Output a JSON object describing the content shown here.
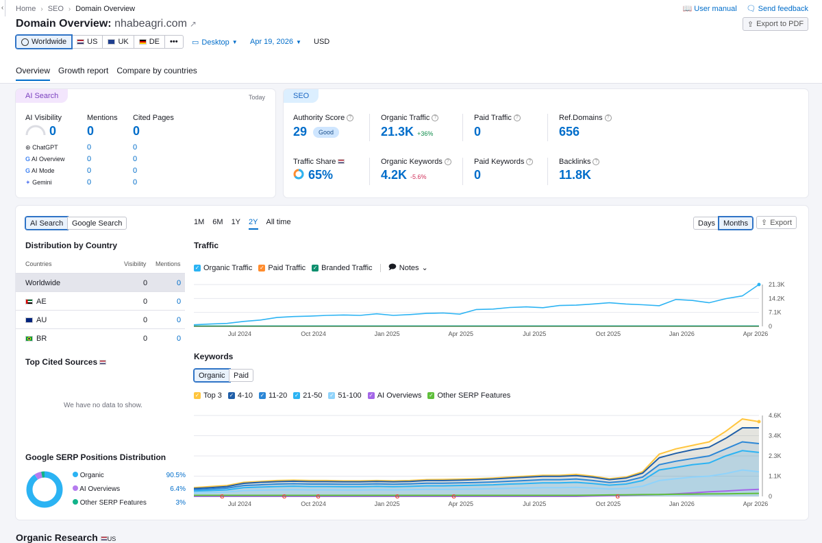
{
  "breadcrumb": {
    "items": [
      "Home",
      "SEO",
      "Domain Overview"
    ]
  },
  "header": {
    "title_prefix": "Domain Overview:",
    "domain": "nhabeagri.com",
    "user_manual": "User manual",
    "send_feedback": "Send feedback",
    "export_pdf": "Export to PDF"
  },
  "databases": [
    {
      "label": "Worldwide",
      "selected": true
    },
    {
      "label": "US",
      "selected": false
    },
    {
      "label": "UK",
      "selected": false
    },
    {
      "label": "DE",
      "selected": false
    }
  ],
  "more_label": "•••",
  "controls": {
    "device": "Desktop",
    "date": "Apr 19, 2026",
    "currency": "USD"
  },
  "tabs": [
    "Overview",
    "Growth report",
    "Compare by countries"
  ],
  "ai_search": {
    "pill": "AI Search",
    "date": "Today",
    "cols": [
      "AI Visibility",
      "Mentions",
      "Cited Pages"
    ],
    "totals": [
      "0",
      "0",
      "0"
    ],
    "rows": [
      {
        "name": "ChatGPT",
        "mentions": "0",
        "cited": "0"
      },
      {
        "name": "AI Overview",
        "mentions": "0",
        "cited": "0"
      },
      {
        "name": "AI Mode",
        "mentions": "0",
        "cited": "0"
      },
      {
        "name": "Gemini",
        "mentions": "0",
        "cited": "0"
      }
    ]
  },
  "seo": {
    "pill": "SEO",
    "authority": {
      "label": "Authority Score",
      "value": "29",
      "badge": "Good"
    },
    "organic_traffic": {
      "label": "Organic Traffic",
      "value": "21.3K",
      "change": "+36%"
    },
    "paid_traffic": {
      "label": "Paid Traffic",
      "value": "0"
    },
    "ref_domains": {
      "label": "Ref.Domains",
      "value": "656"
    },
    "traffic_share": {
      "label": "Traffic Share",
      "value": "65%"
    },
    "organic_keywords": {
      "label": "Organic Keywords",
      "value": "4.2K",
      "change": "-5.6%"
    },
    "paid_keywords": {
      "label": "Paid Keywords",
      "value": "0"
    },
    "backlinks": {
      "label": "Backlinks",
      "value": "11.8K"
    }
  },
  "left_panel": {
    "toggle": [
      "AI Search",
      "Google Search"
    ],
    "dist_title": "Distribution by Country",
    "dist_headers": [
      "Countries",
      "Visibility",
      "Mentions"
    ],
    "dist_rows": [
      {
        "name": "Worldwide",
        "visibility": "0",
        "mentions": "0"
      },
      {
        "name": "AE",
        "visibility": "0",
        "mentions": "0"
      },
      {
        "name": "AU",
        "visibility": "0",
        "mentions": "0"
      },
      {
        "name": "BR",
        "visibility": "0",
        "mentions": "0"
      }
    ],
    "cited_title": "Top Cited Sources",
    "no_data": "We have no data to show.",
    "serp_title": "Google SERP Positions Distribution",
    "serp": [
      {
        "name": "Organic",
        "value": "90.5%",
        "color": "#2bb3f3",
        "pct": 90.5
      },
      {
        "name": "AI Overviews",
        "value": "6.4%",
        "color": "#b57bee",
        "pct": 6.4
      },
      {
        "name": "Other SERP Features",
        "value": "3%",
        "color": "#11b38a",
        "pct": 3
      }
    ]
  },
  "ranges": [
    "1M",
    "6M",
    "1Y",
    "2Y",
    "All time"
  ],
  "days_label": "Days",
  "months_label": "Months",
  "export_label": "Export",
  "traffic": {
    "title": "Traffic",
    "legend": [
      {
        "name": "Organic Traffic",
        "color": "#2bb3f3"
      },
      {
        "name": "Paid Traffic",
        "color": "#ff8c2e"
      },
      {
        "name": "Branded Traffic",
        "color": "#0e8f6e"
      }
    ],
    "notes": "Notes"
  },
  "keywords": {
    "title": "Keywords",
    "toggle": [
      "Organic",
      "Paid"
    ],
    "legend": [
      {
        "name": "Top 3",
        "color": "#ffc53d"
      },
      {
        "name": "4-10",
        "color": "#1f5ea8"
      },
      {
        "name": "11-20",
        "color": "#2b86d6"
      },
      {
        "name": "21-50",
        "color": "#2bb3f3"
      },
      {
        "name": "51-100",
        "color": "#8fd3fb"
      },
      {
        "name": "AI Overviews",
        "color": "#a466e8"
      },
      {
        "name": "Other SERP Features",
        "color": "#5fbf3b"
      }
    ]
  },
  "chart_data": [
    {
      "type": "line",
      "title": "Traffic",
      "x_ticks": [
        "Jul 2024",
        "Oct 2024",
        "Jan 2025",
        "Apr 2025",
        "Jul 2025",
        "Oct 2025",
        "Jan 2026",
        "Apr 2026"
      ],
      "y_ticks": [
        "21.3K",
        "14.2K",
        "7.1K",
        "0"
      ],
      "ylim": [
        0,
        21300
      ],
      "series": [
        {
          "name": "Organic Traffic",
          "color": "#2bb3f3",
          "values": [
            800,
            1200,
            1500,
            2500,
            3200,
            4500,
            5000,
            5200,
            5600,
            5800,
            5600,
            6400,
            5600,
            6000,
            6600,
            6800,
            6200,
            8600,
            8800,
            9600,
            9900,
            9500,
            10600,
            10800,
            11400,
            12000,
            11400,
            11000,
            10500,
            13700,
            13200,
            12000,
            14100,
            15500,
            21300
          ]
        },
        {
          "name": "Paid Traffic",
          "color": "#ff8c2e",
          "values": [
            0,
            0,
            0,
            0,
            0,
            0,
            0,
            0,
            0,
            0,
            0,
            0,
            0,
            0,
            0,
            0,
            0,
            0,
            0,
            0,
            0,
            0,
            0,
            0,
            0,
            0,
            0,
            0,
            0,
            0,
            0,
            0,
            0,
            0,
            0
          ]
        },
        {
          "name": "Branded Traffic",
          "color": "#0e8f6e",
          "values": [
            150,
            150,
            150,
            150,
            150,
            150,
            150,
            150,
            150,
            150,
            150,
            150,
            150,
            150,
            150,
            150,
            150,
            150,
            150,
            150,
            150,
            150,
            150,
            150,
            150,
            150,
            150,
            150,
            150,
            150,
            150,
            150,
            150,
            150,
            150
          ]
        }
      ]
    },
    {
      "type": "area",
      "title": "Keywords",
      "x_ticks": [
        "Jul 2024",
        "Oct 2024",
        "Jan 2025",
        "Apr 2025",
        "Jul 2025",
        "Oct 2025",
        "Jan 2026",
        "Apr 2026"
      ],
      "y_ticks": [
        "4.6K",
        "3.4K",
        "2.3K",
        "1.1K",
        "0"
      ],
      "ylim": [
        0,
        4600
      ],
      "series": [
        {
          "name": "Top 3",
          "color": "#ffc53d",
          "values": [
            500,
            560,
            620,
            800,
            850,
            900,
            920,
            900,
            900,
            880,
            880,
            900,
            880,
            900,
            950,
            960,
            980,
            1000,
            1040,
            1100,
            1150,
            1200,
            1200,
            1250,
            1150,
            1000,
            1100,
            1400,
            2400,
            2700,
            2900,
            3100,
            3700,
            4400,
            4250
          ]
        },
        {
          "name": "4-10",
          "color": "#1f5ea8",
          "values": [
            450,
            500,
            560,
            740,
            800,
            840,
            860,
            840,
            840,
            830,
            830,
            850,
            830,
            850,
            900,
            900,
            920,
            950,
            990,
            1040,
            1090,
            1140,
            1140,
            1180,
            1090,
            950,
            1040,
            1320,
            2200,
            2450,
            2650,
            2800,
            3300,
            3900,
            3900
          ]
        },
        {
          "name": "11-20",
          "color": "#2b86d6",
          "values": [
            380,
            420,
            470,
            620,
            660,
            700,
            720,
            700,
            700,
            690,
            690,
            710,
            690,
            710,
            750,
            750,
            770,
            790,
            820,
            860,
            900,
            950,
            950,
            990,
            900,
            790,
            870,
            1100,
            1800,
            2000,
            2150,
            2300,
            2700,
            3100,
            3000
          ]
        },
        {
          "name": "21-50",
          "color": "#2bb3f3",
          "values": [
            300,
            330,
            370,
            500,
            530,
            560,
            580,
            560,
            560,
            550,
            550,
            570,
            550,
            570,
            600,
            600,
            620,
            640,
            660,
            700,
            730,
            770,
            770,
            800,
            730,
            640,
            700,
            900,
            1500,
            1650,
            1800,
            1900,
            2300,
            2600,
            2500
          ]
        },
        {
          "name": "51-100",
          "color": "#8fd3fb",
          "values": [
            200,
            220,
            250,
            330,
            350,
            370,
            380,
            370,
            370,
            360,
            360,
            380,
            370,
            380,
            400,
            400,
            410,
            420,
            440,
            460,
            480,
            500,
            500,
            520,
            480,
            420,
            460,
            580,
            900,
            1000,
            1100,
            1150,
            1300,
            1500,
            1400
          ]
        },
        {
          "name": "AI Overviews",
          "color": "#a466e8",
          "values": [
            0,
            0,
            0,
            0,
            0,
            0,
            0,
            0,
            0,
            0,
            0,
            0,
            0,
            0,
            0,
            0,
            0,
            0,
            0,
            0,
            0,
            0,
            0,
            0,
            20,
            40,
            60,
            80,
            100,
            150,
            200,
            260,
            300,
            360,
            400
          ]
        },
        {
          "name": "Other SERP Features",
          "color": "#5fbf3b",
          "values": [
            60,
            60,
            60,
            60,
            60,
            60,
            60,
            60,
            60,
            60,
            60,
            60,
            60,
            60,
            60,
            60,
            60,
            60,
            60,
            60,
            60,
            60,
            60,
            60,
            70,
            80,
            90,
            100,
            110,
            120,
            130,
            140,
            150,
            160,
            170
          ]
        }
      ]
    }
  ],
  "organic_research": {
    "title": "Organic Research",
    "db": "US"
  }
}
